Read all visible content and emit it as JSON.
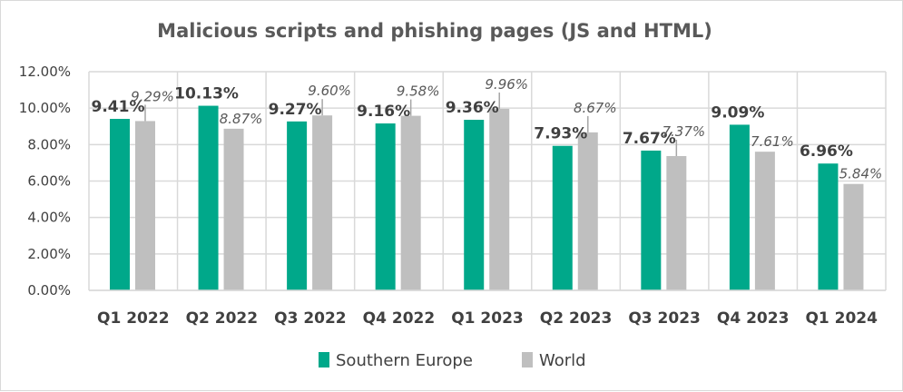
{
  "chart_data": {
    "type": "bar",
    "title": "Malicious scripts and phishing pages (JS and HTML)",
    "categories": [
      "Q1 2022",
      "Q2 2022",
      "Q3 2022",
      "Q4 2022",
      "Q1 2023",
      "Q2 2023",
      "Q3 2023",
      "Q4 2023",
      "Q1 2024"
    ],
    "series": [
      {
        "name": "Southern Europe",
        "color": "#00A88A",
        "values": [
          9.41,
          10.13,
          9.27,
          9.16,
          9.36,
          7.93,
          7.67,
          9.09,
          6.96
        ],
        "labels": [
          "9.41%",
          "10.13%",
          "9.27%",
          "9.16%",
          "9.36%",
          "7.93%",
          "7.67%",
          "9.09%",
          "6.96%"
        ]
      },
      {
        "name": "World",
        "color": "#BFBFBF",
        "values": [
          9.29,
          8.87,
          9.6,
          9.58,
          9.96,
          8.67,
          7.37,
          7.61,
          5.84
        ],
        "labels": [
          "9.29%",
          "8.87%",
          "9.60%",
          "9.58%",
          "9.96%",
          "8.67%",
          "7.37%",
          "7.61%",
          "5.84%"
        ]
      }
    ],
    "ylim": [
      0,
      12
    ],
    "yticks": [
      "0.00%",
      "2.00%",
      "4.00%",
      "6.00%",
      "8.00%",
      "10.00%",
      "12.00%"
    ],
    "xlabel": "",
    "ylabel": "",
    "grid": true,
    "legend": "bottom"
  }
}
